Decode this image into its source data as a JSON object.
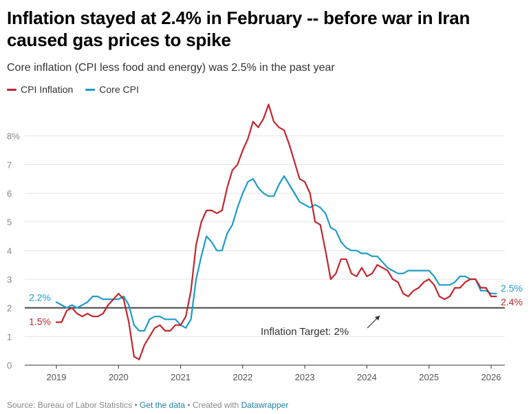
{
  "title": "Inflation stayed at 2.4% in February -- before war in Iran caused gas prices to spike",
  "subtitle": "Core inflation (CPI less food and energy) was 2.5% in the past year",
  "legend": [
    {
      "label": "CPI Inflation",
      "color": "#c0262c"
    },
    {
      "label": "Core CPI",
      "color": "#1d9bc7"
    }
  ],
  "footer": {
    "source": "Source: Bureau of Labor Statistics",
    "sep1": " • ",
    "get_data": "Get the data",
    "sep2": " • Created with ",
    "tool": "Datawrapper"
  },
  "chart_data": {
    "type": "line",
    "title": "Inflation stayed at 2.4% in February -- before war in Iran caused gas prices to spike",
    "xlabel": "",
    "ylabel": "",
    "ylim": [
      0,
      9
    ],
    "xlim": [
      2018.9,
      2026.25
    ],
    "y_ticks": [
      0,
      1,
      2,
      3,
      4,
      5,
      6,
      7,
      8
    ],
    "y_tick_labels": [
      "0",
      "1",
      "2",
      "3",
      "4",
      "5",
      "6",
      "7",
      "8%"
    ],
    "x_ticks": [
      2019,
      2020,
      2021,
      2022,
      2023,
      2024,
      2025,
      2026
    ],
    "x_tick_labels": [
      "2019",
      "2020",
      "2021",
      "2022",
      "2023",
      "2024",
      "2025",
      "2026"
    ],
    "grid": true,
    "reference_line": {
      "value": 2,
      "label": "Inflation Target: 2%"
    },
    "series": [
      {
        "name": "CPI Inflation",
        "color": "#c0262c",
        "start": 2019.0,
        "step": 0.0833333,
        "start_label": "1.5%",
        "end_label": "2.4%",
        "values": [
          1.5,
          1.5,
          1.9,
          2.0,
          1.8,
          1.7,
          1.8,
          1.7,
          1.7,
          1.8,
          2.1,
          2.3,
          2.5,
          2.3,
          1.5,
          0.3,
          0.2,
          0.7,
          1.0,
          1.3,
          1.4,
          1.2,
          1.2,
          1.4,
          1.4,
          1.7,
          2.6,
          4.2,
          5.0,
          5.4,
          5.4,
          5.3,
          5.4,
          6.2,
          6.8,
          7.0,
          7.5,
          7.9,
          8.5,
          8.3,
          8.6,
          9.1,
          8.5,
          8.3,
          8.2,
          7.7,
          7.1,
          6.5,
          6.4,
          6.0,
          5.0,
          4.9,
          4.0,
          3.0,
          3.2,
          3.7,
          3.7,
          3.2,
          3.1,
          3.4,
          3.1,
          3.2,
          3.5,
          3.4,
          3.3,
          3.0,
          2.9,
          2.5,
          2.4,
          2.6,
          2.7,
          2.9,
          3.0,
          2.8,
          2.4,
          2.3,
          2.4,
          2.7,
          2.7,
          2.9,
          3.0,
          3.0,
          2.7,
          2.7,
          2.4,
          2.4
        ]
      },
      {
        "name": "Core CPI",
        "color": "#1d9bc7",
        "start": 2019.0,
        "step": 0.0833333,
        "start_label": "2.2%",
        "end_label": "2.5%",
        "values": [
          2.2,
          2.1,
          2.0,
          2.1,
          2.0,
          2.1,
          2.2,
          2.4,
          2.4,
          2.3,
          2.3,
          2.3,
          2.3,
          2.4,
          2.1,
          1.4,
          1.2,
          1.2,
          1.6,
          1.7,
          1.7,
          1.6,
          1.6,
          1.6,
          1.4,
          1.3,
          1.6,
          3.0,
          3.8,
          4.5,
          4.3,
          4.0,
          4.0,
          4.6,
          4.9,
          5.5,
          6.0,
          6.4,
          6.5,
          6.2,
          6.0,
          5.9,
          5.9,
          6.3,
          6.6,
          6.3,
          6.0,
          5.7,
          5.6,
          5.5,
          5.6,
          5.5,
          5.3,
          4.8,
          4.7,
          4.3,
          4.1,
          4.0,
          4.0,
          3.9,
          3.9,
          3.8,
          3.8,
          3.6,
          3.4,
          3.3,
          3.2,
          3.2,
          3.3,
          3.3,
          3.3,
          3.3,
          3.3,
          3.1,
          2.8,
          2.8,
          2.8,
          2.9,
          3.1,
          3.1,
          3.0,
          3.0,
          2.6,
          2.6,
          2.5,
          2.5
        ]
      }
    ]
  }
}
